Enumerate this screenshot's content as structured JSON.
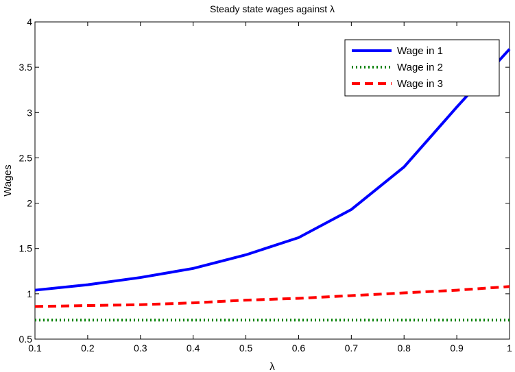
{
  "chart_data": {
    "type": "line",
    "title": "Steady state wages against λ",
    "xlabel": "λ",
    "ylabel": "Wages",
    "xlim": [
      0.1,
      1
    ],
    "ylim": [
      0.5,
      4
    ],
    "x_ticks": [
      0.1,
      0.2,
      0.3,
      0.4,
      0.5,
      0.6,
      0.7,
      0.8,
      0.9,
      1
    ],
    "x_tick_labels": [
      "0.1",
      "0.2",
      "0.3",
      "0.4",
      "0.5",
      "0.6",
      "0.7",
      "0.8",
      "0.9",
      "1"
    ],
    "y_ticks": [
      0.5,
      1,
      1.5,
      2,
      2.5,
      3,
      3.5,
      4
    ],
    "y_tick_labels": [
      "0.5",
      "1",
      "1.5",
      "2",
      "2.5",
      "3",
      "3.5",
      "4"
    ],
    "grid": false,
    "legend": {
      "placement": "top-right"
    },
    "x": [
      0.1,
      0.2,
      0.3,
      0.4,
      0.5,
      0.6,
      0.7,
      0.8,
      0.9,
      1.0
    ],
    "series": [
      {
        "name": "Wage in 1",
        "color": "#0000ff",
        "style": "solid",
        "values": [
          1.04,
          1.1,
          1.18,
          1.28,
          1.43,
          1.62,
          1.93,
          2.4,
          3.06,
          3.7
        ]
      },
      {
        "name": "Wage in 2",
        "color": "#008000",
        "style": "dotted",
        "values": [
          0.71,
          0.71,
          0.71,
          0.71,
          0.71,
          0.71,
          0.71,
          0.71,
          0.71,
          0.71
        ]
      },
      {
        "name": "Wage in 3",
        "color": "#ff0000",
        "style": "dashed",
        "values": [
          0.86,
          0.87,
          0.88,
          0.9,
          0.93,
          0.95,
          0.98,
          1.01,
          1.04,
          1.08
        ]
      }
    ]
  }
}
